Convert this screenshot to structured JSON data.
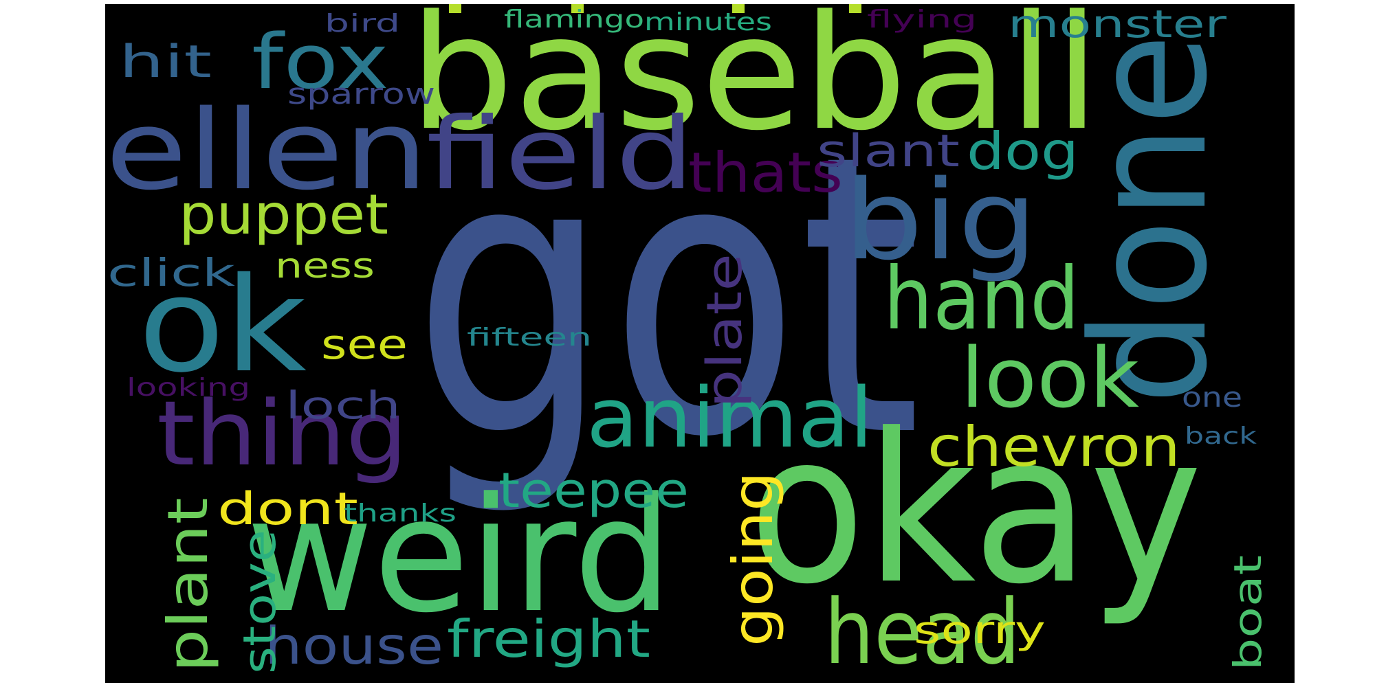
{
  "wordcloud": {
    "background_color": "#000000",
    "words": [
      {
        "key": "got",
        "text": "got",
        "color": "#3b528b"
      },
      {
        "key": "baseball",
        "text": "baseball",
        "color": "#8fd744"
      },
      {
        "key": "okay",
        "text": "okay",
        "color": "#5ec962"
      },
      {
        "key": "weird",
        "text": "weird",
        "color": "#4ac16d"
      },
      {
        "key": "done",
        "text": "done",
        "color": "#2c728e"
      },
      {
        "key": "ellen",
        "text": "ellen",
        "color": "#3b528b"
      },
      {
        "key": "ok",
        "text": "ok",
        "color": "#287c8e"
      },
      {
        "key": "field",
        "text": "field",
        "color": "#414487"
      },
      {
        "key": "big",
        "text": "big",
        "color": "#355f8d"
      },
      {
        "key": "thing",
        "text": "thing",
        "color": "#482878"
      },
      {
        "key": "animal",
        "text": "animal",
        "color": "#20a486"
      },
      {
        "key": "head",
        "text": "head",
        "color": "#7ad151"
      },
      {
        "key": "hand",
        "text": "hand",
        "color": "#5ec962"
      },
      {
        "key": "look",
        "text": "look",
        "color": "#5ec962"
      },
      {
        "key": "fox",
        "text": "fox",
        "color": "#2a788e"
      },
      {
        "key": "puppet",
        "text": "puppet",
        "color": "#a5db36"
      },
      {
        "key": "thats",
        "text": "thats",
        "color": "#440154"
      },
      {
        "key": "plant",
        "text": "plant",
        "color": "#6ccd5a"
      },
      {
        "key": "chevron",
        "text": "chevron",
        "color": "#c2df23"
      },
      {
        "key": "going",
        "text": "going",
        "color": "#fde725"
      },
      {
        "key": "freight",
        "text": "freight",
        "color": "#22a884"
      },
      {
        "key": "house",
        "text": "house",
        "color": "#3b528b"
      },
      {
        "key": "teepee",
        "text": "teepee",
        "color": "#22a884"
      },
      {
        "key": "plate",
        "text": "plate",
        "color": "#46337e"
      },
      {
        "key": "slant",
        "text": "slant",
        "color": "#414487"
      },
      {
        "key": "dog",
        "text": "dog",
        "color": "#1f9a8a"
      },
      {
        "key": "stove",
        "text": "stove",
        "color": "#2ab07f"
      },
      {
        "key": "monster",
        "text": "monster",
        "color": "#277f8e"
      },
      {
        "key": "hit",
        "text": "hit",
        "color": "#33638d"
      },
      {
        "key": "dont",
        "text": "dont",
        "color": "#f1e51d"
      },
      {
        "key": "see",
        "text": "see",
        "color": "#d0e11c"
      },
      {
        "key": "loch",
        "text": "loch",
        "color": "#404588"
      },
      {
        "key": "sorry",
        "text": "sorry",
        "color": "#dde318"
      },
      {
        "key": "boat",
        "text": "boat",
        "color": "#4ac16d"
      },
      {
        "key": "click",
        "text": "click",
        "color": "#31688e"
      },
      {
        "key": "ness",
        "text": "ness",
        "color": "#a5db36"
      },
      {
        "key": "sparrow",
        "text": "sparrow",
        "color": "#3e4989"
      },
      {
        "key": "flamingo",
        "text": "flamingo",
        "color": "#35b779"
      },
      {
        "key": "minutes",
        "text": "minutes",
        "color": "#26ad81"
      },
      {
        "key": "flying",
        "text": "flying",
        "color": "#440154"
      },
      {
        "key": "bird",
        "text": "bird",
        "color": "#3e4989"
      },
      {
        "key": "fifteen",
        "text": "fifteen",
        "color": "#24868e"
      },
      {
        "key": "looking",
        "text": "looking",
        "color": "#471063"
      },
      {
        "key": "thanks",
        "text": "thanks",
        "color": "#1fa187"
      },
      {
        "key": "one",
        "text": "one",
        "color": "#38588c"
      },
      {
        "key": "back",
        "text": "back",
        "color": "#31688e"
      }
    ]
  }
}
